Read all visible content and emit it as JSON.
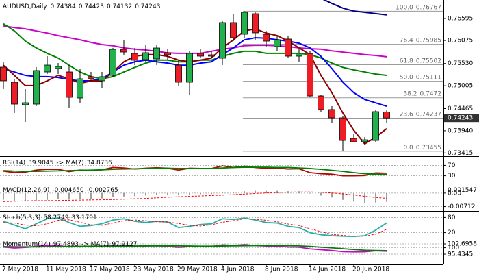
{
  "chart_data": {
    "type": "candlestick",
    "title": "AUDUSD,Daily",
    "categories": [
      "7 May 2018",
      null,
      null,
      null,
      "11 May 2018",
      null,
      null,
      null,
      "17 May 2018",
      null,
      null,
      null,
      "23 May 2018",
      null,
      null,
      null,
      "29 May 2018",
      null,
      null,
      null,
      "4 Jun 2018",
      null,
      null,
      null,
      "8 Jun 2018",
      null,
      null,
      null,
      "14 Jun 2018",
      null,
      null,
      null,
      "20 Jun 2018",
      null,
      null,
      null
    ],
    "open": [
      0.75445,
      0.75088,
      0.74554,
      0.7457,
      0.75331,
      0.75412,
      0.75331,
      0.74716,
      0.75218,
      0.75121,
      0.7525,
      0.75866,
      0.75769,
      0.75623,
      0.75639,
      0.75785,
      0.75493,
      0.75088,
      0.75769,
      0.75736,
      0.75655,
      0.76498,
      0.76222,
      0.76708,
      0.76222,
      0.75931,
      0.76109,
      0.75704,
      0.75769,
      0.74764,
      0.74441,
      0.74246,
      0.7376,
      0.73679,
      0.73711,
      0.74384
    ],
    "high": [
      0.75574,
      0.75169,
      0.74926,
      0.75445,
      0.75704,
      0.75542,
      0.75493,
      0.75412,
      0.75331,
      0.75331,
      0.75898,
      0.76093,
      0.75898,
      0.75979,
      0.75979,
      0.75866,
      0.75607,
      0.75817,
      0.75866,
      0.75817,
      0.76546,
      0.76708,
      0.76767,
      0.7674,
      0.76303,
      0.7619,
      0.7619,
      0.75866,
      0.75817,
      0.74797,
      0.74521,
      0.74279,
      0.73873,
      0.73792,
      0.74441,
      0.74423
    ],
    "low": [
      0.74926,
      0.7436,
      0.74149,
      0.74521,
      0.75283,
      0.75283,
      0.74473,
      0.74602,
      0.75121,
      0.74959,
      0.75218,
      0.75736,
      0.75493,
      0.75574,
      0.75493,
      0.75607,
      0.75007,
      0.74797,
      0.75655,
      0.75672,
      0.75493,
      0.7606,
      0.76141,
      0.76093,
      0.75931,
      0.75817,
      0.75655,
      0.75574,
      0.74732,
      0.74392,
      0.74117,
      0.73455,
      0.73663,
      0.73631,
      0.73663,
      0.74132
    ],
    "close": [
      0.75121,
      0.7457,
      0.74602,
      0.75364,
      0.75493,
      0.75461,
      0.74732,
      0.75169,
      0.75169,
      0.75218,
      0.75866,
      0.75801,
      0.75607,
      0.75785,
      0.75898,
      0.75736,
      0.75088,
      0.75769,
      0.75704,
      0.75704,
      0.76498,
      0.76141,
      0.76741,
      0.76255,
      0.7606,
      0.76093,
      0.75704,
      0.75769,
      0.74764,
      0.74441,
      0.74246,
      0.73711,
      0.73679,
      0.73727,
      0.74392,
      0.74243
    ],
    "up_color": "#22b14c",
    "down_color": "#ee1c25",
    "ylim": [
      0.73339,
      0.77032
    ],
    "yticks": [
      0.76595,
      0.76075,
      {
        "value": 0.7553,
        "label": "0.75530"
      },
      0.75005,
      0.74465,
      {
        "value": 0.7394,
        "label": "0.73940"
      },
      0.73415
    ],
    "overlays": [
      {
        "color": "#000080",
        "values": [
          null,
          null,
          null,
          null,
          null,
          null,
          null,
          null,
          null,
          null,
          null,
          null,
          null,
          null,
          null,
          null,
          null,
          null,
          null,
          null,
          null,
          null,
          null,
          null,
          null,
          null,
          null,
          null,
          null,
          0.7707,
          0.7695,
          0.7684,
          0.7677,
          0.7674,
          0.7671,
          0.7668
        ]
      },
      {
        "color": "#cc00cc",
        "values": [
          0.7642,
          0.7638,
          0.7635,
          0.763,
          0.7625,
          0.7619,
          0.7614,
          0.7609,
          0.7603,
          0.7598,
          0.7595,
          0.759,
          0.7587,
          0.7585,
          0.7582,
          0.7578,
          0.7577,
          0.7577,
          0.7577,
          0.7582,
          0.7587,
          0.759,
          0.7595,
          0.7596,
          0.7596,
          0.7595,
          0.7593,
          0.759,
          0.7588,
          0.7587,
          0.7583,
          0.758,
          0.7577,
          0.7574,
          0.7572,
          0.7569
        ]
      },
      {
        "color": "#008000",
        "values": [
          0.7647,
          0.763,
          0.7606,
          0.759,
          0.7577,
          0.7566,
          0.7549,
          0.7533,
          0.7522,
          0.7517,
          0.7522,
          0.7533,
          0.7544,
          0.7554,
          0.7561,
          0.7561,
          0.7557,
          0.7557,
          0.7561,
          0.7561,
          0.757,
          0.7577,
          0.7582,
          0.7582,
          0.7577,
          0.7577,
          0.7577,
          0.7577,
          0.7574,
          0.7566,
          0.7554,
          0.7544,
          0.7538,
          0.7533,
          0.7528,
          0.7525
        ]
      },
      {
        "color": "#0000ff",
        "values": [
          0.7541,
          0.7533,
          0.7525,
          0.7522,
          0.7522,
          0.752,
          0.7515,
          0.7512,
          0.7512,
          0.7517,
          0.7533,
          0.7549,
          0.7557,
          0.7561,
          0.7557,
          0.7554,
          0.7549,
          0.7549,
          0.7554,
          0.7557,
          0.7574,
          0.759,
          0.7609,
          0.7614,
          0.7613,
          0.7609,
          0.7606,
          0.7601,
          0.759,
          0.757,
          0.7541,
          0.7509,
          0.7484,
          0.7468,
          0.746,
          0.7452
        ]
      },
      {
        "color": "#8b0000",
        "values": [
          0.7549,
          0.7525,
          0.7501,
          0.7501,
          0.7512,
          0.7525,
          0.7517,
          0.7506,
          0.7512,
          0.7512,
          0.7533,
          0.7557,
          0.757,
          0.7574,
          0.7574,
          0.757,
          0.7561,
          0.7557,
          0.7561,
          0.7566,
          0.759,
          0.7609,
          0.763,
          0.7635,
          0.7625,
          0.7619,
          0.7606,
          0.759,
          0.7574,
          0.7525,
          0.7484,
          0.7436,
          0.7395,
          0.7363,
          0.7379,
          0.7399
        ]
      }
    ],
    "fibonacci": [
      {
        "ratio": "100.0",
        "value": 0.76767
      },
      {
        "ratio": "76.4",
        "value": 0.75985
      },
      {
        "ratio": "61.8",
        "value": 0.75502
      },
      {
        "ratio": "50.0",
        "value": 0.75111
      },
      {
        "ratio": "38.2",
        "value": 0.7472
      },
      {
        "ratio": "23.6",
        "value": 0.74237
      },
      {
        "ratio": "0.0",
        "value": 0.73455
      }
    ],
    "panels": [
      {
        "readout": [
          "RSI(14)",
          39.9045,
          "-> MA(7)",
          34.8736
        ],
        "ylim": [
          0,
          100
        ],
        "yticks": [
          30,
          70
        ],
        "series": [
          {
            "color": "#c00000",
            "values": [
              48,
              42,
              44,
              52,
              55,
              55,
              46,
              52,
              51,
              53,
              62,
              60,
              56,
              59,
              61,
              59,
              52,
              59,
              58,
              58,
              68,
              62,
              67,
              62,
              59,
              60,
              56,
              57,
              42,
              38,
              36,
              30,
              30,
              31,
              41,
              39.9045
            ]
          },
          {
            "color": "#008000",
            "values": [
              50,
              48,
              47,
              47,
              48,
              49,
              50,
              51,
              52,
              53,
              55,
              56,
              57,
              58,
              59,
              59,
              58,
              58,
              58,
              58,
              60,
              62,
              63,
              63,
              63,
              62,
              62,
              60,
              58,
              55,
              51,
              47,
              42,
              38,
              36,
              34.8736
            ]
          }
        ]
      },
      {
        "readout": [
          "MACD(12,26,9)",
          {
            "value": -0.00465,
            "label": "-0.004650"
          },
          -0.002765
        ],
        "ylim": [
          -0.00909,
          0.0043
        ],
        "yticks": [
          0.001547,
          {
            "value": 0,
            "label": "0.00"
          },
          -0.00712
        ],
        "bars": {
          "color": "#808080",
          "values": [
            -0.0035,
            -0.004,
            -0.0042,
            -0.004,
            -0.0036,
            -0.0033,
            -0.0034,
            -0.0032,
            -0.003,
            -0.0028,
            -0.0022,
            -0.0018,
            -0.0016,
            -0.0013,
            -0.001,
            -0.0009,
            -0.001,
            -0.0007,
            -0.0006,
            -0.0005,
            0.0003,
            0.0006,
            0.001,
            0.0012,
            0.0012,
            0.0012,
            0.001,
            0.0009,
            -0.0002,
            -0.0013,
            -0.0023,
            -0.0036,
            -0.0045,
            -0.0051,
            -0.005,
            -0.00465
          ]
        },
        "series": [
          {
            "color": "#ff0000",
            "dash": true,
            "values": [
              -0.0045,
              -0.0043,
              -0.0041,
              -0.004,
              -0.004,
              -0.0039,
              -0.0038,
              -0.0037,
              -0.0036,
              -0.0035,
              -0.0034,
              -0.0032,
              -0.003,
              -0.0028,
              -0.0025,
              -0.0022,
              -0.0019,
              -0.0017,
              -0.0015,
              -0.0013,
              -0.0011,
              -0.0008,
              -0.0005,
              -0.0002,
              0.0001,
              0.0003,
              0.0005,
              0.0006,
              0.0006,
              0.0004,
              0.0001,
              -0.0004,
              -0.001,
              -0.0017,
              -0.0023,
              -0.002765
            ]
          }
        ]
      },
      {
        "readout": [
          "Stoch(5,3,3)",
          58.2749,
          33.1701
        ],
        "ylim": [
          0,
          100
        ],
        "yticks": [
          20,
          80
        ],
        "series": [
          {
            "color": "#20b2aa",
            "values": [
              65,
              50,
              35,
              55,
              75,
              78,
              60,
              45,
              48,
              55,
              70,
              75,
              65,
              60,
              65,
              62,
              40,
              45,
              52,
              55,
              75,
              72,
              78,
              70,
              60,
              58,
              45,
              40,
              20,
              12,
              8,
              6,
              5,
              8,
              30,
              58.2749
            ]
          },
          {
            "color": "#ff0000",
            "dash": true,
            "values": [
              60,
              58,
              50,
              47,
              55,
              69,
              71,
              61,
              51,
              49,
              58,
              67,
              70,
              67,
              63,
              62,
              56,
              49,
              46,
              51,
              61,
              67,
              75,
              73,
              69,
              63,
              54,
              48,
              35,
              24,
              13,
              9,
              6,
              6,
              14,
              33.1701
            ]
          }
        ]
      },
      {
        "readout": [
          "Momentum(14)",
          97.4893,
          "-> MA(7)",
          97.9127
        ],
        "ylim": [
          88.17,
          106.08
        ],
        "yticks": [
          102.6958,
          100,
          95.4345
        ],
        "series": [
          {
            "color": "#cc00cc",
            "values": [
              100.5,
              99.8,
              100.2,
              101.0,
              101.5,
              101.4,
              100.6,
              100.9,
              100.8,
              101.0,
              101.8,
              101.6,
              101.0,
              101.2,
              101.4,
              101.0,
              100.3,
              100.8,
              101.0,
              100.8,
              102.0,
              101.6,
              102.2,
              101.5,
              101.2,
              101.1,
              100.5,
              100.4,
              99.2,
              98.6,
              98.0,
              97.2,
              97.0,
              97.1,
              97.8,
              97.4893
            ]
          },
          {
            "color": "#008000",
            "values": [
              100.8,
              100.7,
              100.6,
              100.6,
              100.7,
              100.8,
              100.9,
              101.0,
              101.1,
              101.1,
              101.1,
              101.2,
              101.2,
              101.3,
              101.3,
              101.3,
              101.3,
              101.2,
              101.1,
              101.1,
              101.2,
              101.3,
              101.4,
              101.5,
              101.5,
              101.6,
              101.5,
              101.3,
              100.9,
              100.4,
              99.9,
              99.3,
              98.7,
              98.2,
              98.0,
              97.9127
            ]
          }
        ]
      }
    ]
  }
}
